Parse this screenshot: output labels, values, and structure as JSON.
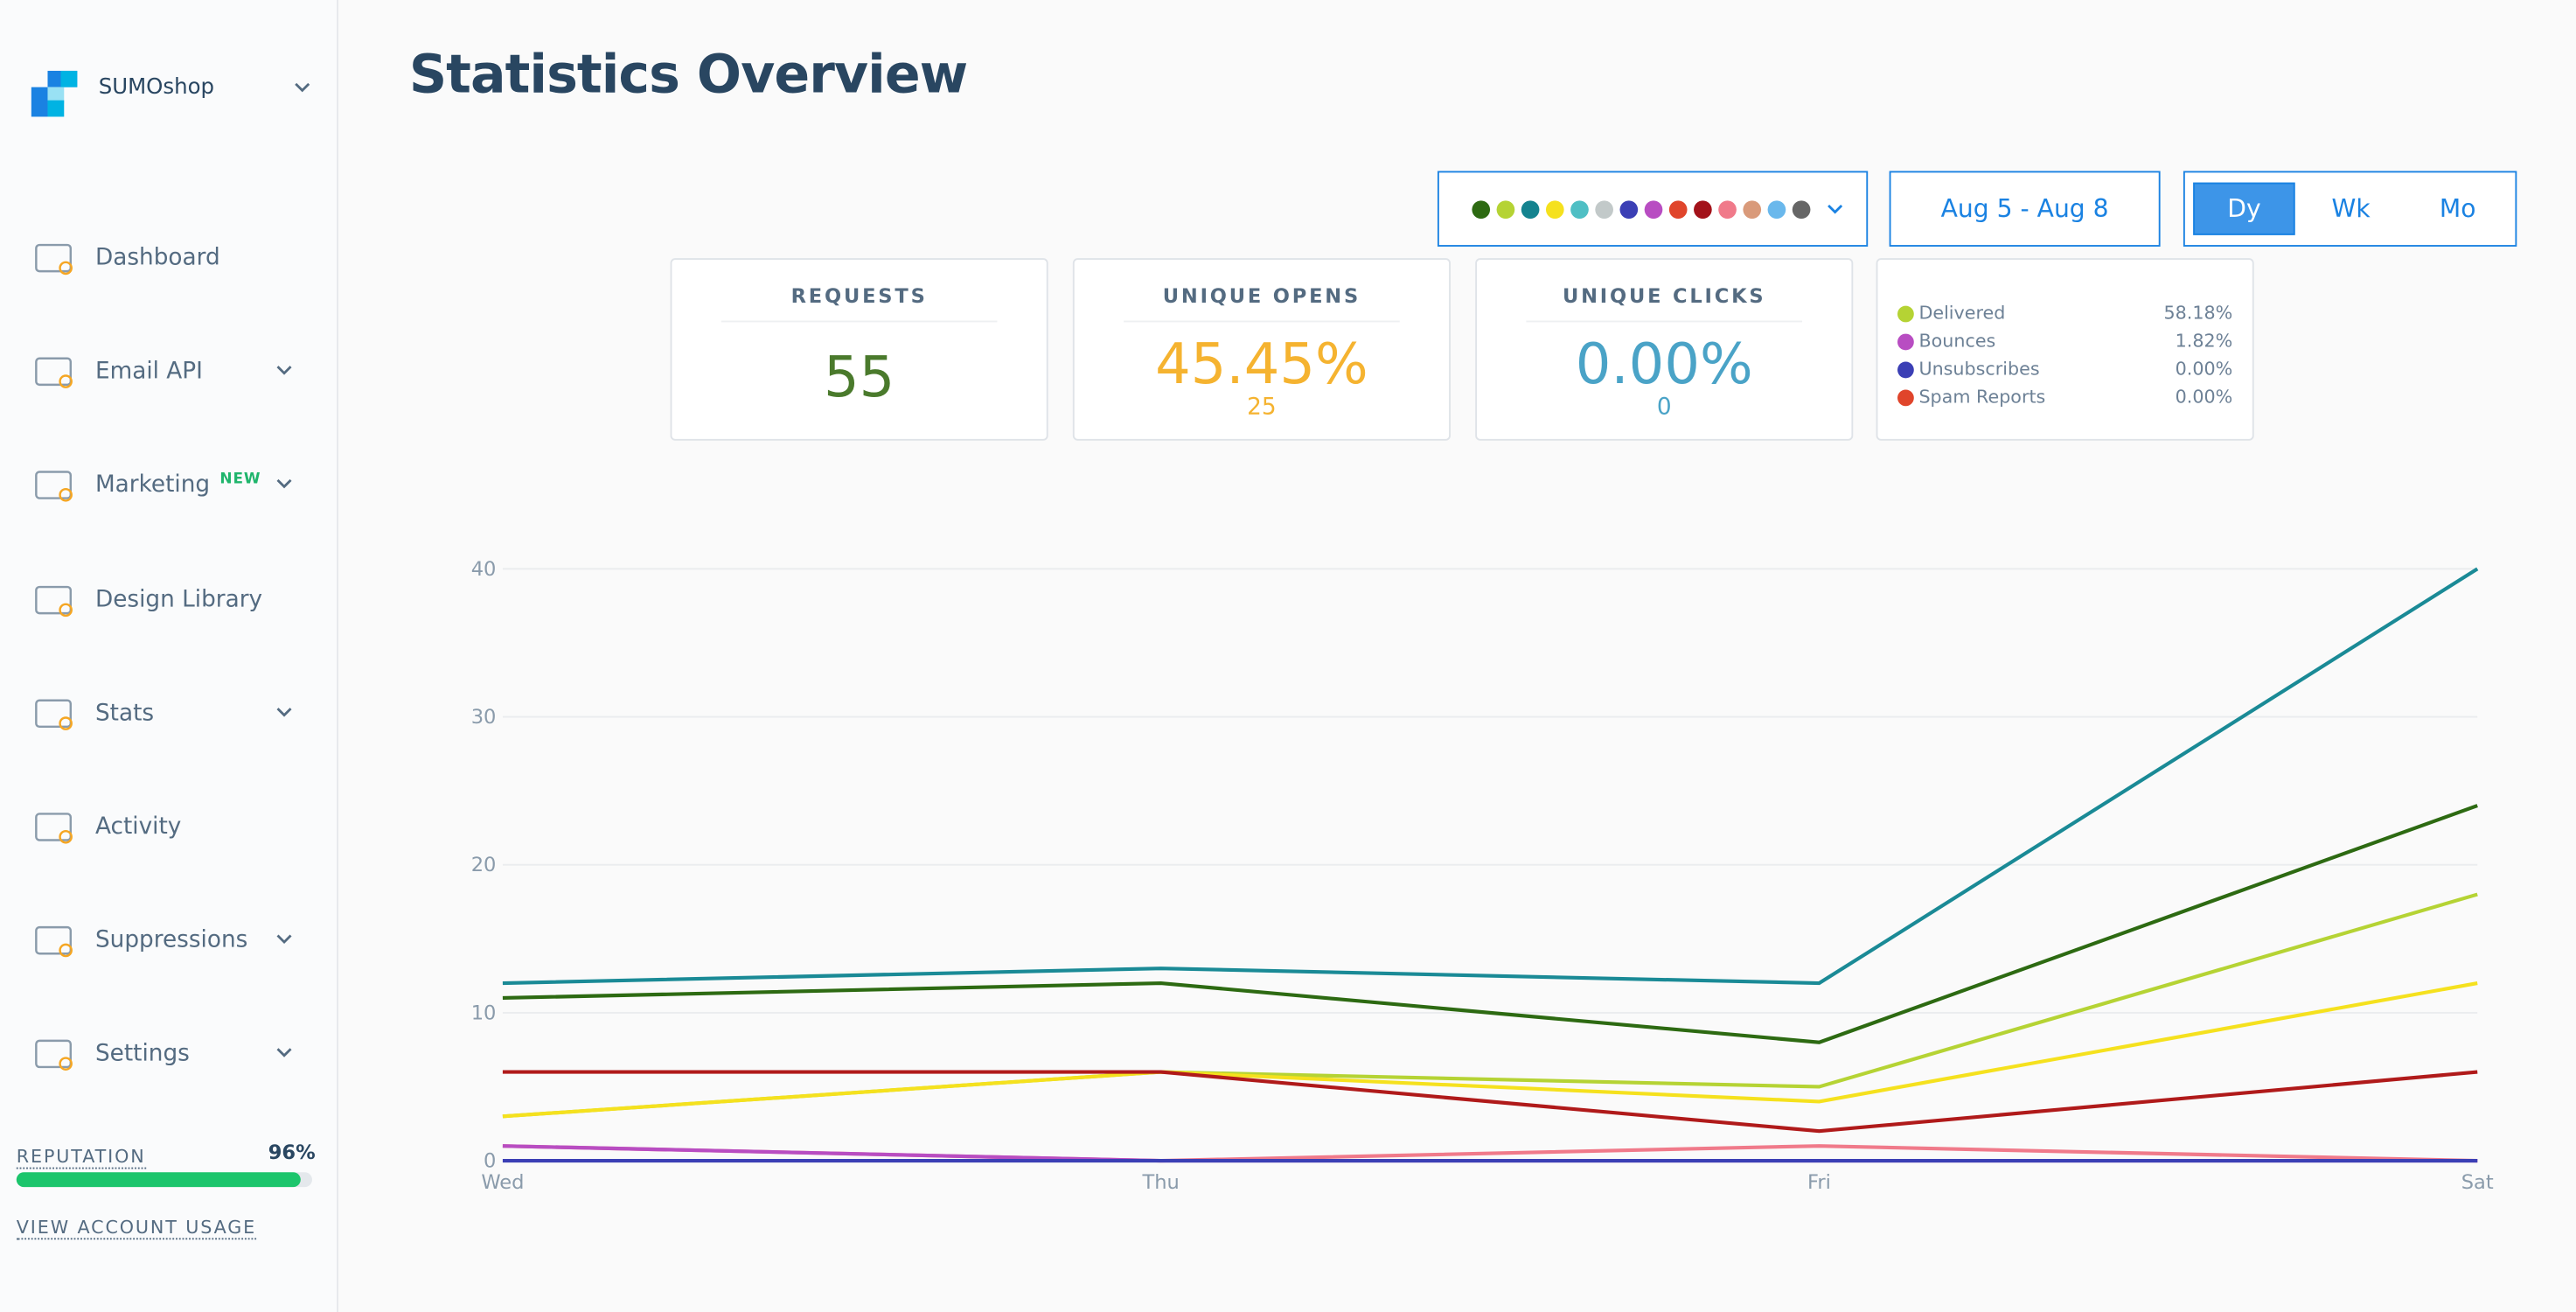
{
  "sidebar": {
    "brand": "SUMOshop",
    "nav": [
      {
        "label": "Dashboard",
        "expandable": false
      },
      {
        "label": "Email API",
        "expandable": true
      },
      {
        "label": "Marketing",
        "badge": "NEW",
        "expandable": true
      },
      {
        "label": "Design Library",
        "expandable": false
      },
      {
        "label": "Stats",
        "expandable": true
      },
      {
        "label": "Activity",
        "expandable": false
      },
      {
        "label": "Suppressions",
        "expandable": true
      },
      {
        "label": "Settings",
        "expandable": true
      }
    ],
    "reputation": {
      "label": "REPUTATION",
      "value": 96,
      "value_label": "96%"
    },
    "account_usage": "VIEW ACCOUNT USAGE"
  },
  "header": {
    "title": "Statistics Overview"
  },
  "filters": {
    "colors": [
      "#2d6a12",
      "#b5d334",
      "#14838f",
      "#f5e11e",
      "#4fbfc4",
      "#c2c9c9",
      "#3b3fb5",
      "#b84dc2",
      "#e0452b",
      "#a3121a",
      "#f07a8a",
      "#d99a7a",
      "#6ab8ec",
      "#666666"
    ],
    "date_range": "Aug 5 - Aug 8",
    "periods": [
      "Dy",
      "Wk",
      "Mo"
    ],
    "active_period": 0
  },
  "cards": [
    {
      "title": "REQUESTS",
      "value": "55",
      "color": "#4a7a2c"
    },
    {
      "title": "UNIQUE OPENS",
      "value": "45.45%",
      "sub": "25",
      "color": "#f5b330"
    },
    {
      "title": "UNIQUE CLICKS",
      "value": "0.00%",
      "sub": "0",
      "color": "#4aa3c7"
    }
  ],
  "legend": [
    {
      "label": "Delivered",
      "color": "#b5d334",
      "value": "58.18%"
    },
    {
      "label": "Bounces",
      "color": "#b84dc2",
      "value": "1.82%"
    },
    {
      "label": "Unsubscribes",
      "color": "#3b3fb5",
      "value": "0.00%"
    },
    {
      "label": "Spam Reports",
      "color": "#e0452b",
      "value": "0.00%"
    }
  ],
  "chart_data": {
    "type": "line",
    "categories": [
      "Wed",
      "Thu",
      "Fri",
      "Sat"
    ],
    "series": [
      {
        "color": "#1a8a96",
        "values": [
          12,
          13,
          12,
          40
        ]
      },
      {
        "color": "#2d6a12",
        "values": [
          11,
          12,
          8,
          24
        ]
      },
      {
        "color": "#b5d334",
        "values": [
          3,
          6,
          5,
          18
        ]
      },
      {
        "color": "#f5e11e",
        "values": [
          3,
          6,
          4,
          12
        ]
      },
      {
        "color": "#b01a1a",
        "values": [
          6,
          6,
          2,
          6
        ]
      },
      {
        "color": "#f07a8a",
        "values": [
          1,
          0,
          1,
          0
        ]
      },
      {
        "color": "#b84dc2",
        "values": [
          1,
          0,
          0,
          0
        ]
      },
      {
        "color": "#3b3fb5",
        "values": [
          0,
          0,
          0,
          0
        ]
      }
    ],
    "ylim": [
      0,
      40
    ],
    "yticks": [
      0,
      10,
      20,
      30,
      40
    ],
    "grid": true
  }
}
